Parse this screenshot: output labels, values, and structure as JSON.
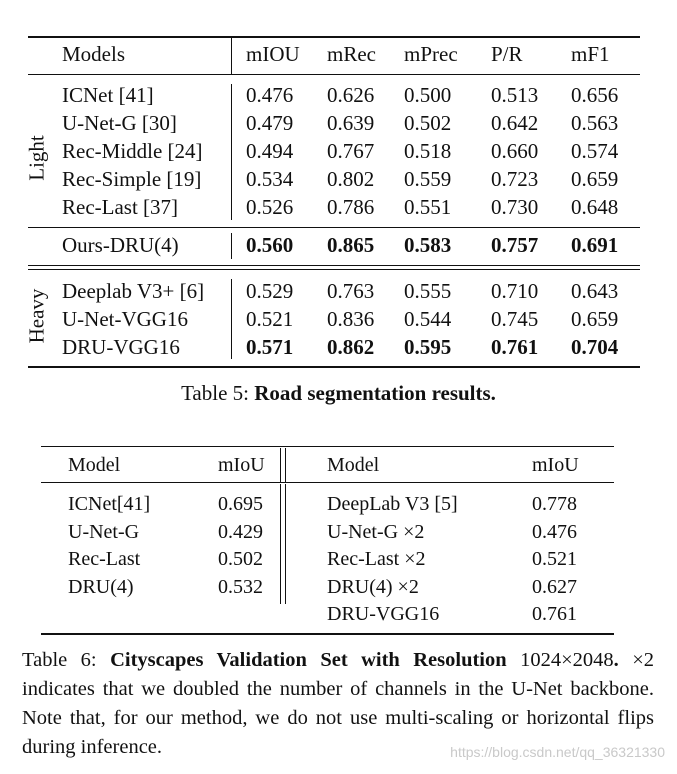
{
  "table5": {
    "headers": [
      "Models",
      "mIOU",
      "mRec",
      "mPrec",
      "P/R",
      "mF1"
    ],
    "group_light": "Light",
    "group_heavy": "Heavy",
    "light_rows": [
      [
        "ICNet [41]",
        "0.476",
        "0.626",
        "0.500",
        "0.513",
        "0.656"
      ],
      [
        "U-Net-G [30]",
        "0.479",
        "0.639",
        "0.502",
        "0.642",
        "0.563"
      ],
      [
        "Rec-Middle [24]",
        "0.494",
        "0.767",
        "0.518",
        "0.660",
        "0.574"
      ],
      [
        "Rec-Simple [19]",
        "0.534",
        "0.802",
        "0.559",
        "0.723",
        "0.659"
      ],
      [
        "Rec-Last [37]",
        "0.526",
        "0.786",
        "0.551",
        "0.730",
        "0.648"
      ]
    ],
    "ours_row": [
      "Ours-DRU(4)",
      "0.560",
      "0.865",
      "0.583",
      "0.757",
      "0.691"
    ],
    "heavy_rows": [
      [
        "Deeplab V3+ [6]",
        "0.529",
        "0.763",
        "0.555",
        "0.710",
        "0.643"
      ],
      [
        "U-Net-VGG16",
        "0.521",
        "0.836",
        "0.544",
        "0.745",
        "0.659"
      ],
      [
        "DRU-VGG16",
        "0.571",
        "0.862",
        "0.595",
        "0.761",
        "0.704"
      ]
    ],
    "caption_label": "Table 5:",
    "caption_title": "Road segmentation results."
  },
  "table6": {
    "headers": [
      "Model",
      "mIoU",
      "Model",
      "mIoU"
    ],
    "left_rows": [
      [
        "ICNet[41]",
        "0.695"
      ],
      [
        "U-Net-G",
        "0.429"
      ],
      [
        "Rec-Last",
        "0.502"
      ],
      [
        "DRU(4)",
        "0.532"
      ]
    ],
    "right_rows": [
      [
        "DeepLab V3 [5]",
        "0.778"
      ],
      [
        "U-Net-G ×2",
        "0.476"
      ],
      [
        "Rec-Last ×2",
        "0.521"
      ],
      [
        "DRU(4) ×2",
        "0.627"
      ],
      [
        "DRU-VGG16",
        "0.761"
      ]
    ],
    "caption_label": "Table 6:",
    "caption_title": "Cityscapes Validation Set with Resolution",
    "caption_resolution": "1024×2048",
    "caption_dot": ".",
    "caption_body": "×2 indicates that we doubled the number of channels in the U-Net backbone. Note that, for our method, we do not use multi-scaling or horizontal flips during inference."
  },
  "watermark": "https://blog.csdn.net/qq_36321330"
}
